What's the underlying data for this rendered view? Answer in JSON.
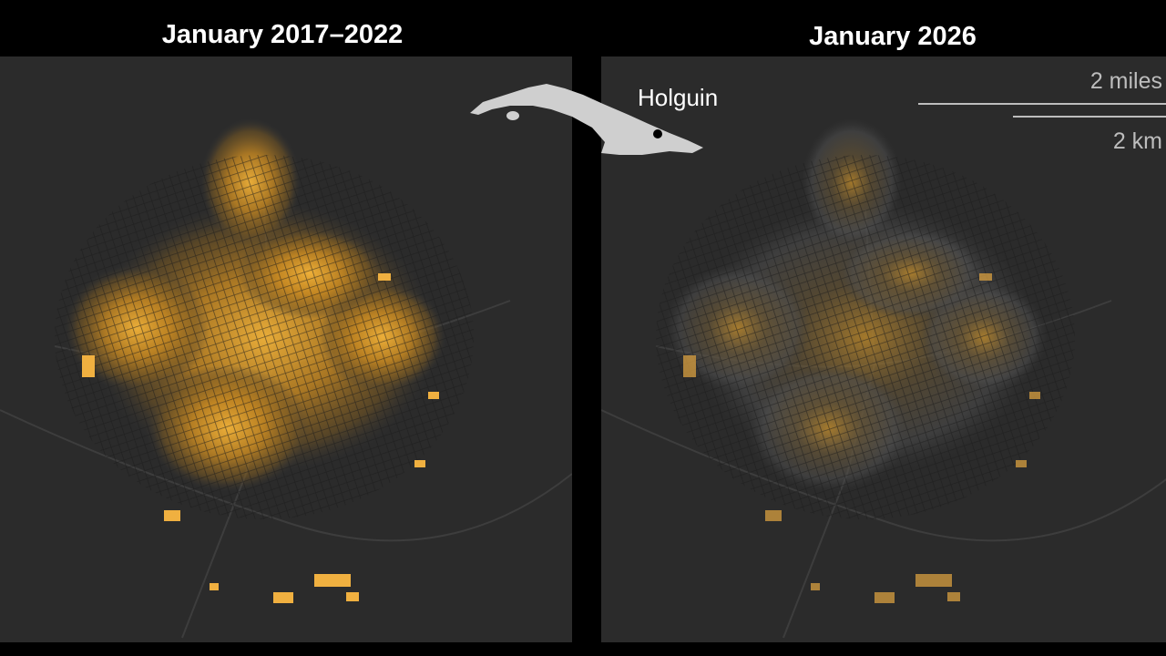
{
  "panels": [
    {
      "title": "January 2017–2022"
    },
    {
      "title": "January 2026"
    }
  ],
  "inset": {
    "label": "Holguin"
  },
  "scale_bar": {
    "miles": "2 miles",
    "km": "2 km"
  }
}
